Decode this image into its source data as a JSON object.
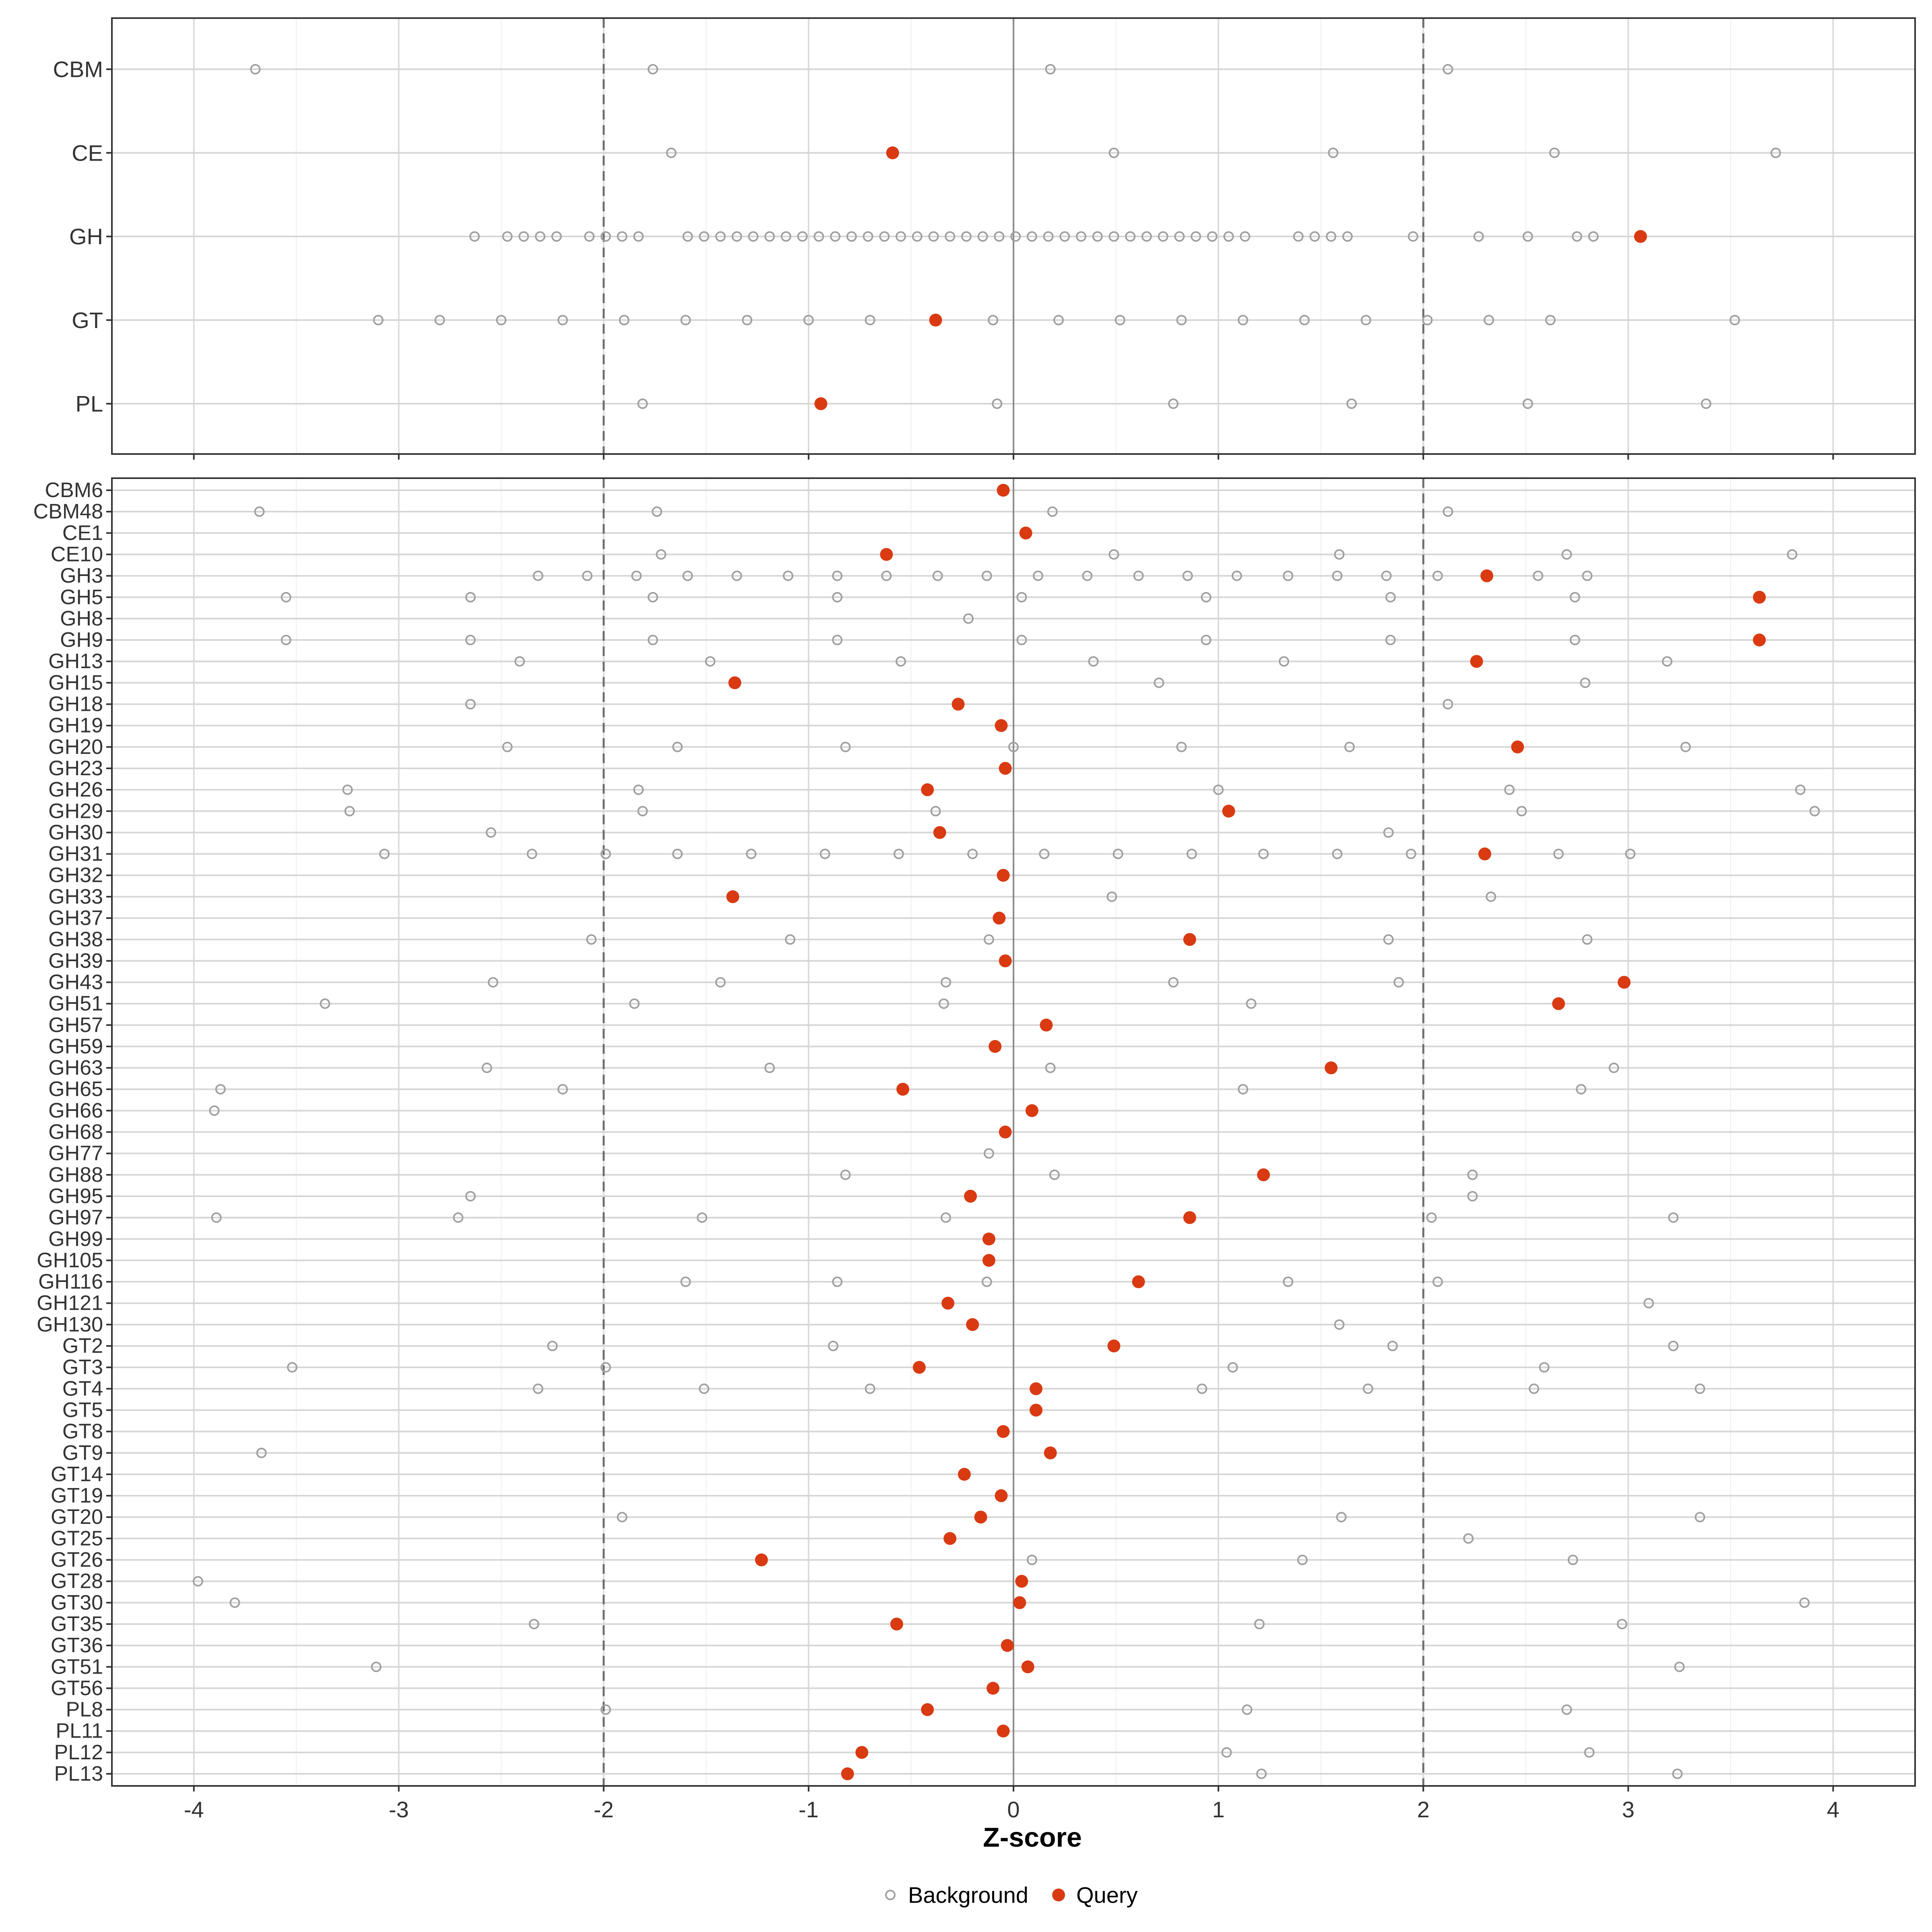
{
  "chart_data": {
    "type": "scatter",
    "xlabel": "Z-score",
    "x_ticks": [
      -4,
      -3,
      -2,
      -1,
      0,
      1,
      2,
      3,
      4
    ],
    "xlim": [
      -4.4,
      4.4
    ],
    "reference_lines": {
      "solid": [
        0
      ],
      "dashed": [
        -2,
        2
      ]
    },
    "grid": true,
    "legend": {
      "placement": "bottom",
      "items": [
        {
          "label": "Background",
          "marker": "open-circle",
          "color": "#a0a0a0"
        },
        {
          "label": "Query",
          "marker": "filled-circle",
          "color": "#d93a12"
        }
      ]
    },
    "panels": [
      {
        "name": "class-panel",
        "categories": [
          "CBM",
          "CE",
          "GH",
          "GT",
          "PL"
        ],
        "rows": [
          {
            "label": "CBM",
            "background": [
              -3.7,
              -1.76,
              0.18,
              2.12
            ],
            "query": []
          },
          {
            "label": "CE",
            "background": [
              -1.67,
              0.49,
              1.56,
              2.64,
              3.72
            ],
            "query": [
              -0.59
            ]
          },
          {
            "label": "GH",
            "background": [
              -2.63,
              -2.47,
              -2.39,
              -2.31,
              -2.23,
              -2.07,
              -1.99,
              -1.91,
              -1.83,
              -1.59,
              -1.51,
              -1.43,
              -1.35,
              -1.27,
              -1.19,
              -1.11,
              -1.03,
              -0.95,
              -0.87,
              -0.79,
              -0.71,
              -0.63,
              -0.55,
              -0.47,
              -0.39,
              -0.31,
              -0.23,
              -0.15,
              -0.07,
              0.01,
              0.09,
              0.17,
              0.25,
              0.33,
              0.41,
              0.49,
              0.57,
              0.65,
              0.73,
              0.81,
              0.89,
              0.97,
              1.05,
              1.13,
              1.39,
              1.47,
              1.55,
              1.63,
              1.95,
              2.27,
              2.51,
              2.75,
              2.83
            ],
            "query": [
              3.06
            ]
          },
          {
            "label": "GT",
            "background": [
              -3.1,
              -2.8,
              -2.5,
              -2.2,
              -1.9,
              -1.6,
              -1.3,
              -1.0,
              -0.7,
              -0.1,
              0.22,
              0.52,
              0.82,
              1.12,
              1.42,
              1.72,
              2.02,
              2.32,
              2.62,
              3.52
            ],
            "query": [
              -0.38
            ]
          },
          {
            "label": "PL",
            "background": [
              -1.81,
              -0.08,
              0.78,
              1.65,
              2.51,
              3.38
            ],
            "query": [
              -0.94
            ]
          }
        ]
      },
      {
        "name": "family-panel",
        "categories": [
          "CBM6",
          "CBM48",
          "CE1",
          "CE10",
          "GH3",
          "GH5",
          "GH8",
          "GH9",
          "GH13",
          "GH15",
          "GH18",
          "GH19",
          "GH20",
          "GH23",
          "GH26",
          "GH29",
          "GH30",
          "GH31",
          "GH32",
          "GH33",
          "GH37",
          "GH38",
          "GH39",
          "GH43",
          "GH51",
          "GH57",
          "GH59",
          "GH63",
          "GH65",
          "GH66",
          "GH68",
          "GH77",
          "GH88",
          "GH95",
          "GH97",
          "GH99",
          "GH105",
          "GH116",
          "GH121",
          "GH130",
          "GT2",
          "GT3",
          "GT4",
          "GT5",
          "GT8",
          "GT9",
          "GT14",
          "GT19",
          "GT20",
          "GT25",
          "GT26",
          "GT28",
          "GT30",
          "GT35",
          "GT36",
          "GT51",
          "GT56",
          "PL8",
          "PL11",
          "PL12",
          "PL13"
        ],
        "rows": [
          {
            "label": "CBM6",
            "background": [],
            "query": [
              -0.05
            ]
          },
          {
            "label": "CBM48",
            "background": [
              -3.68,
              -1.74,
              0.19,
              2.12
            ],
            "query": []
          },
          {
            "label": "CE1",
            "background": [],
            "query": [
              0.06
            ]
          },
          {
            "label": "CE10",
            "background": [
              -1.72,
              0.49,
              1.59,
              2.7,
              3.8
            ],
            "query": [
              -0.62
            ]
          },
          {
            "label": "GH3",
            "background": [
              -2.32,
              -2.08,
              -1.84,
              -1.59,
              -1.35,
              -1.1,
              -0.86,
              -0.62,
              -0.37,
              -0.13,
              0.12,
              0.36,
              0.61,
              0.85,
              1.09,
              1.34,
              1.58,
              1.82,
              2.07,
              2.56,
              2.8
            ],
            "query": [
              2.31
            ]
          },
          {
            "label": "GH5",
            "background": [
              -3.55,
              -2.65,
              -1.76,
              -0.86,
              0.04,
              0.94,
              1.84,
              2.74
            ],
            "query": [
              3.64
            ]
          },
          {
            "label": "GH8",
            "background": [
              -0.22
            ],
            "query": []
          },
          {
            "label": "GH9",
            "background": [
              -3.55,
              -2.65,
              -1.76,
              -0.86,
              0.04,
              0.94,
              1.84,
              2.74
            ],
            "query": [
              3.64
            ]
          },
          {
            "label": "GH13",
            "background": [
              -2.41,
              -1.48,
              -0.55,
              0.39,
              1.32,
              3.19
            ],
            "query": [
              2.26
            ]
          },
          {
            "label": "GH15",
            "background": [
              0.71,
              2.79
            ],
            "query": [
              -1.36
            ]
          },
          {
            "label": "GH18",
            "background": [
              -2.65,
              2.12
            ],
            "query": [
              -0.27
            ]
          },
          {
            "label": "GH19",
            "background": [],
            "query": [
              -0.06
            ]
          },
          {
            "label": "GH20",
            "background": [
              -2.47,
              -1.64,
              -0.82,
              0.0,
              0.82,
              1.64,
              3.28
            ],
            "query": [
              2.46
            ]
          },
          {
            "label": "GH23",
            "background": [],
            "query": [
              -0.04
            ]
          },
          {
            "label": "GH26",
            "background": [
              -3.25,
              -1.83,
              1.0,
              2.42,
              3.84
            ],
            "query": [
              -0.42
            ]
          },
          {
            "label": "GH29",
            "background": [
              -3.24,
              -1.81,
              -0.38,
              2.48,
              3.91
            ],
            "query": [
              1.05
            ]
          },
          {
            "label": "GH30",
            "background": [
              -2.55,
              1.83
            ],
            "query": [
              -0.36
            ]
          },
          {
            "label": "GH31",
            "background": [
              -3.07,
              -2.35,
              -1.99,
              -1.64,
              -1.28,
              -0.92,
              -0.56,
              -0.2,
              0.15,
              0.51,
              0.87,
              1.22,
              1.58,
              1.94,
              2.66,
              3.01
            ],
            "query": [
              2.3
            ]
          },
          {
            "label": "GH32",
            "background": [],
            "query": [
              -0.05
            ]
          },
          {
            "label": "GH33",
            "background": [
              0.48,
              2.33
            ],
            "query": [
              -1.37
            ]
          },
          {
            "label": "GH37",
            "background": [],
            "query": [
              -0.07
            ]
          },
          {
            "label": "GH38",
            "background": [
              -2.06,
              -1.09,
              -0.12,
              1.83,
              2.8
            ],
            "query": [
              0.86
            ]
          },
          {
            "label": "GH39",
            "background": [],
            "query": [
              -0.04
            ]
          },
          {
            "label": "GH43",
            "background": [
              -2.54,
              -1.43,
              -0.33,
              0.78,
              1.88
            ],
            "query": [
              2.98
            ]
          },
          {
            "label": "GH51",
            "background": [
              -3.36,
              -1.85,
              -0.34,
              1.16
            ],
            "query": [
              2.66
            ]
          },
          {
            "label": "GH57",
            "background": [],
            "query": [
              0.16
            ]
          },
          {
            "label": "GH59",
            "background": [],
            "query": [
              -0.09
            ]
          },
          {
            "label": "GH63",
            "background": [
              -2.57,
              -1.19,
              0.18,
              2.93
            ],
            "query": [
              1.55
            ]
          },
          {
            "label": "GH65",
            "background": [
              -3.87,
              -2.2,
              1.12,
              2.77
            ],
            "query": [
              -0.54
            ]
          },
          {
            "label": "GH66",
            "background": [
              -3.9
            ],
            "query": [
              0.09
            ]
          },
          {
            "label": "GH68",
            "background": [],
            "query": [
              -0.04
            ]
          },
          {
            "label": "GH77",
            "background": [
              -0.12
            ],
            "query": []
          },
          {
            "label": "GH88",
            "background": [
              -0.82,
              0.2,
              2.24
            ],
            "query": [
              1.22
            ]
          },
          {
            "label": "GH95",
            "background": [
              -2.65,
              2.24
            ],
            "query": [
              -0.21
            ]
          },
          {
            "label": "GH97",
            "background": [
              -3.89,
              -2.71,
              -1.52,
              -0.33,
              2.04,
              3.22
            ],
            "query": [
              0.86
            ]
          },
          {
            "label": "GH99",
            "background": [],
            "query": [
              -0.12
            ]
          },
          {
            "label": "GH105",
            "background": [],
            "query": [
              -0.12
            ]
          },
          {
            "label": "GH116",
            "background": [
              -1.6,
              -0.86,
              -0.13,
              1.34,
              2.07
            ],
            "query": [
              0.61
            ]
          },
          {
            "label": "GH121",
            "background": [
              3.1
            ],
            "query": [
              -0.32
            ]
          },
          {
            "label": "GH130",
            "background": [
              1.59
            ],
            "query": [
              -0.2
            ]
          },
          {
            "label": "GT2",
            "background": [
              -2.25,
              -0.88,
              1.85,
              3.22
            ],
            "query": [
              0.49
            ]
          },
          {
            "label": "GT3",
            "background": [
              -3.52,
              -1.99,
              1.07,
              2.59
            ],
            "query": [
              -0.46
            ]
          },
          {
            "label": "GT4",
            "background": [
              -2.32,
              -1.51,
              -0.7,
              0.92,
              1.73,
              2.54,
              3.35
            ],
            "query": [
              0.11
            ]
          },
          {
            "label": "GT5",
            "background": [],
            "query": [
              0.11
            ]
          },
          {
            "label": "GT8",
            "background": [],
            "query": [
              -0.05
            ]
          },
          {
            "label": "GT9",
            "background": [
              -3.67
            ],
            "query": [
              0.18
            ]
          },
          {
            "label": "GT14",
            "background": [],
            "query": [
              -0.24
            ]
          },
          {
            "label": "GT19",
            "background": [],
            "query": [
              -0.06
            ]
          },
          {
            "label": "GT20",
            "background": [
              -1.91,
              1.6,
              3.35
            ],
            "query": [
              -0.16
            ]
          },
          {
            "label": "GT25",
            "background": [
              2.22
            ],
            "query": [
              -0.31
            ]
          },
          {
            "label": "GT26",
            "background": [
              0.09,
              1.41,
              2.73
            ],
            "query": [
              -1.23
            ]
          },
          {
            "label": "GT28",
            "background": [
              -3.98
            ],
            "query": [
              0.04
            ]
          },
          {
            "label": "GT30",
            "background": [
              -3.8,
              3.86
            ],
            "query": [
              0.03
            ]
          },
          {
            "label": "GT35",
            "background": [
              -2.34,
              1.2,
              2.97
            ],
            "query": [
              -0.57
            ]
          },
          {
            "label": "GT36",
            "background": [],
            "query": [
              -0.03
            ]
          },
          {
            "label": "GT51",
            "background": [
              -3.11,
              3.25
            ],
            "query": [
              0.07
            ]
          },
          {
            "label": "GT56",
            "background": [],
            "query": [
              -0.1
            ]
          },
          {
            "label": "PL8",
            "background": [
              -1.99,
              1.14,
              2.7
            ],
            "query": [
              -0.42
            ]
          },
          {
            "label": "PL11",
            "background": [],
            "query": [
              -0.05
            ]
          },
          {
            "label": "PL12",
            "background": [
              1.04,
              2.81
            ],
            "query": [
              -0.74
            ]
          },
          {
            "label": "PL13",
            "background": [
              1.21,
              3.24
            ],
            "query": [
              -0.81
            ]
          }
        ]
      }
    ]
  }
}
